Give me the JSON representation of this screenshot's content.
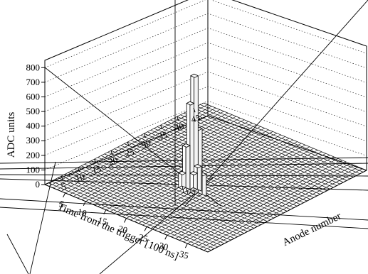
{
  "chart_data": {
    "type": "lego3d",
    "zlabel": "ADC units",
    "xlabel": "Anode number",
    "ylabel": "Time from the trigger [100 ns]",
    "z_ticks": [
      "0",
      "100",
      "200",
      "300",
      "400",
      "500",
      "600",
      "700",
      "800"
    ],
    "zlim": [
      0,
      850
    ],
    "anode_ticks": [
      "5",
      "10",
      "15",
      "20",
      "25",
      "30",
      "35",
      "40",
      "45"
    ],
    "anode_range": [
      0,
      48
    ],
    "time_ticks": [
      "5",
      "10",
      "15",
      "20",
      "25",
      "30",
      "35"
    ],
    "time_range": [
      0,
      40
    ],
    "bins": [
      {
        "anode": 17,
        "time": 22,
        "adc": 800
      },
      {
        "anode": 17,
        "time": 21,
        "adc": 600
      },
      {
        "anode": 17,
        "time": 23,
        "adc": 450
      },
      {
        "anode": 17,
        "time": 20,
        "adc": 300
      },
      {
        "anode": 16,
        "time": 22,
        "adc": 180
      },
      {
        "anode": 18,
        "time": 22,
        "adc": 170
      },
      {
        "anode": 16,
        "time": 21,
        "adc": 120
      },
      {
        "anode": 18,
        "time": 21,
        "adc": 110
      },
      {
        "anode": 17,
        "time": 24,
        "adc": 150
      },
      {
        "anode": 17,
        "time": 19,
        "adc": 100
      }
    ]
  }
}
